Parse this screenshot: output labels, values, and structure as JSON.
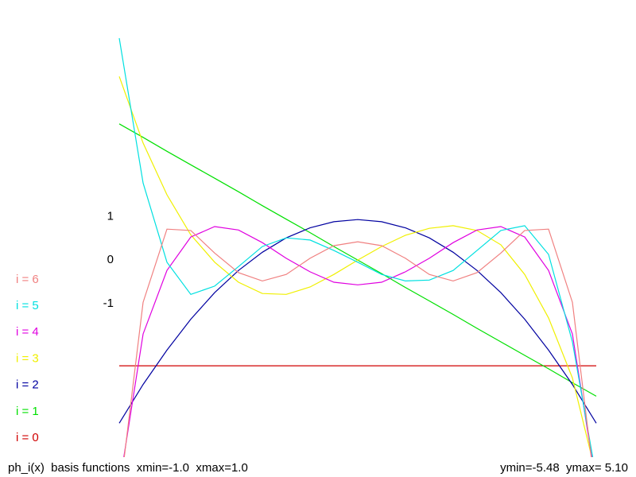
{
  "chart_data": {
    "type": "line",
    "x": [
      -1,
      -0.9,
      -0.8,
      -0.7,
      -0.6,
      -0.5,
      -0.4,
      -0.3,
      -0.2,
      -0.1,
      0,
      0.1,
      0.2,
      0.3,
      0.4,
      0.5,
      0.6,
      0.7,
      0.8,
      0.9,
      1
    ],
    "xlim": [
      -1,
      1
    ],
    "ylim": [
      -5.48,
      5.1
    ],
    "yticks": [
      1,
      0,
      -1
    ],
    "legend": "left",
    "footer_left": "ph_i(x)  basis functions  xmin=-1.0  xmax=1.0",
    "footer_right": "ymin=-5.48  ymax= 5.10",
    "series": [
      {
        "name": "i = 0",
        "color": "#d00000",
        "values": [
          -2.43,
          -2.43,
          -2.43,
          -2.43,
          -2.43,
          -2.43,
          -2.43,
          -2.43,
          -2.43,
          -2.43,
          -2.43,
          -2.43,
          -2.43,
          -2.43,
          -2.43,
          -2.43,
          -2.43,
          -2.43,
          -2.43,
          -2.43,
          -2.43
        ]
      },
      {
        "name": "i = 1",
        "color": "#00e000",
        "values": [
          3.13,
          2.82,
          2.5,
          2.19,
          1.88,
          1.57,
          1.25,
          0.94,
          0.63,
          0.31,
          0,
          -0.31,
          -0.63,
          -0.94,
          -1.25,
          -1.57,
          -1.88,
          -2.19,
          -2.5,
          -2.82,
          -3.13
        ]
      },
      {
        "name": "i = 2",
        "color": "#0000a0",
        "values": [
          -3.75,
          -2.86,
          -2.07,
          -1.36,
          -0.75,
          -0.24,
          0.18,
          0.51,
          0.74,
          0.88,
          0.93,
          0.88,
          0.74,
          0.51,
          0.18,
          -0.24,
          -0.75,
          -1.36,
          -2.07,
          -2.86,
          -3.75
        ]
      },
      {
        "name": "i = 3",
        "color": "#f0f000",
        "values": [
          4.22,
          2.69,
          1.5,
          0.58,
          -0.05,
          -0.51,
          -0.77,
          -0.79,
          -0.62,
          -0.33,
          0,
          0.31,
          0.57,
          0.73,
          0.79,
          0.68,
          0.35,
          -0.33,
          -1.33,
          -2.71,
          -4.95
        ]
      },
      {
        "name": "i = 4",
        "color": "#e000e0",
        "values": [
          -5.2,
          -1.7,
          -0.24,
          0.53,
          0.77,
          0.69,
          0.4,
          0.04,
          -0.27,
          -0.51,
          -0.57,
          -0.51,
          -0.27,
          0.04,
          0.4,
          0.69,
          0.77,
          0.53,
          -0.24,
          -1.7,
          -5.2
        ]
      },
      {
        "name": "i = 5",
        "color": "#00e0e0",
        "values": [
          5.1,
          1.77,
          -0.05,
          -0.79,
          -0.6,
          -0.15,
          0.31,
          0.51,
          0.46,
          0.22,
          -0.05,
          -0.33,
          -0.48,
          -0.46,
          -0.24,
          0.22,
          0.68,
          0.79,
          0.13,
          -1.88,
          -4.99
        ]
      },
      {
        "name": "i = 6",
        "color": "#f08080",
        "values": [
          -5.48,
          -0.97,
          0.71,
          0.68,
          0.16,
          -0.29,
          -0.48,
          -0.33,
          0.04,
          0.33,
          0.42,
          0.33,
          0.04,
          -0.33,
          -0.48,
          -0.29,
          0.16,
          0.68,
          0.71,
          -0.97,
          -5.48
        ]
      }
    ]
  }
}
